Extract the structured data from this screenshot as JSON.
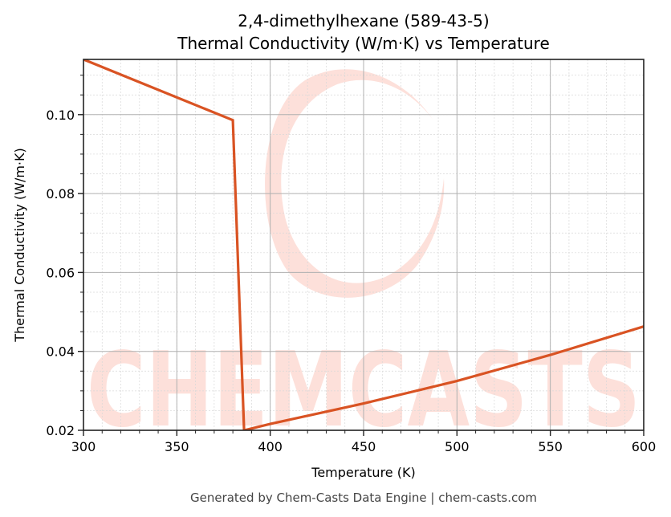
{
  "title": {
    "line1": "2,4-dimethylhexane (589-43-5)",
    "line2": "Thermal Conductivity (W/m·K) vs Temperature"
  },
  "footer": "Generated by Chem-Casts Data Engine | chem-casts.com",
  "watermark": {
    "text": "CHEMCASTS",
    "color": "#fde0da"
  },
  "colors": {
    "line": "#d95323",
    "major_grid": "#b0b0b0",
    "minor_grid": "#d8d8d8",
    "axis": "#222222"
  },
  "chart_data": {
    "type": "line",
    "title": "2,4-dimethylhexane (589-43-5) Thermal Conductivity (W/m·K) vs Temperature",
    "xlabel": "Temperature (K)",
    "ylabel": "Thermal Conductivity (W/m·K)",
    "xlim": [
      300,
      600
    ],
    "ylim": [
      0.02,
      0.114
    ],
    "xticks": [
      300,
      350,
      400,
      450,
      500,
      550,
      600
    ],
    "xtick_labels": [
      "300",
      "350",
      "400",
      "450",
      "500",
      "550",
      "600"
    ],
    "yticks": [
      0.02,
      0.04,
      0.06,
      0.08,
      0.1
    ],
    "ytick_labels": [
      "0.02",
      "0.04",
      "0.06",
      "0.08",
      "0.10"
    ],
    "x_minor_step": 10,
    "y_minor_step": 0.005,
    "grid": true,
    "legend": null,
    "series": [
      {
        "name": "Thermal Conductivity",
        "color": "#d95323",
        "x": [
          300,
          380,
          386,
          400,
          450,
          500,
          550,
          600
        ],
        "y": [
          0.114,
          0.0986,
          0.02,
          0.0216,
          0.0268,
          0.0325,
          0.0391,
          0.0463
        ]
      }
    ]
  }
}
